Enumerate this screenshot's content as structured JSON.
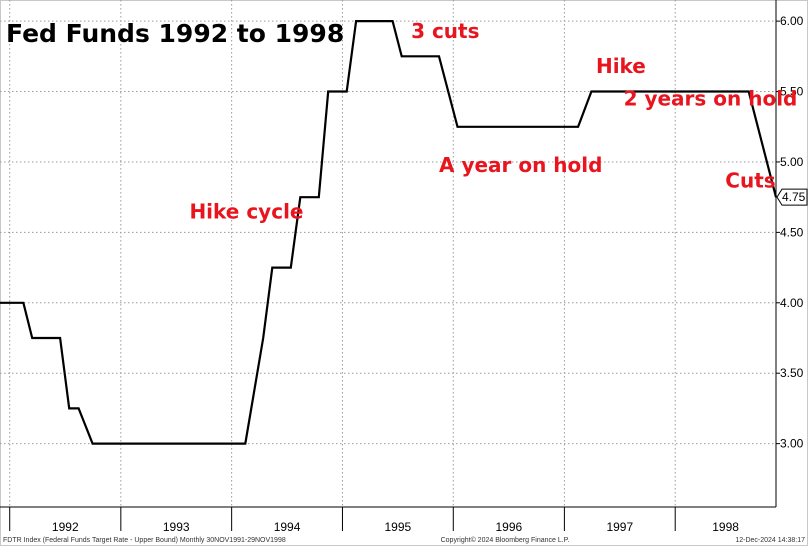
{
  "chart_data": {
    "type": "line",
    "title": "Fed Funds 1992 to 1998",
    "xlabel": "",
    "ylabel": "",
    "x_ticks": [
      "1992",
      "1993",
      "1994",
      "1995",
      "1996",
      "1997",
      "1998"
    ],
    "y_ticks": [
      "3.00",
      "3.50",
      "4.00",
      "4.50",
      "5.00",
      "5.50",
      "6.00"
    ],
    "ylim": [
      2.55,
      6.15
    ],
    "xlim": [
      "1991-11-30",
      "1998-11-29"
    ],
    "grid": true,
    "series": [
      {
        "color": "#000000",
        "points": [
          [
            "1991-11-30",
            4.0
          ],
          [
            "1992-02-15",
            4.0
          ],
          [
            "1992-03-15",
            3.75
          ],
          [
            "1992-06-15",
            3.75
          ],
          [
            "1992-07-15",
            3.25
          ],
          [
            "1992-08-15",
            3.25
          ],
          [
            "1992-09-30",
            3.0
          ],
          [
            "1994-02-15",
            3.0
          ],
          [
            "1994-04-15",
            3.75
          ],
          [
            "1994-05-15",
            4.25
          ],
          [
            "1994-07-15",
            4.25
          ],
          [
            "1994-08-15",
            4.75
          ],
          [
            "1994-10-15",
            4.75
          ],
          [
            "1994-11-15",
            5.5
          ],
          [
            "1995-01-15",
            5.5
          ],
          [
            "1995-02-15",
            6.0
          ],
          [
            "1995-06-15",
            6.0
          ],
          [
            "1995-07-15",
            5.75
          ],
          [
            "1995-11-15",
            5.75
          ],
          [
            "1996-01-15",
            5.25
          ],
          [
            "1997-02-15",
            5.25
          ],
          [
            "1997-03-31",
            5.5
          ],
          [
            "1998-08-31",
            5.5
          ],
          [
            "1998-11-29",
            4.75
          ]
        ]
      }
    ],
    "last_value_label": "4.75",
    "annotations": [
      {
        "text": "3 cuts",
        "x": "1995-08-15",
        "y": 5.88
      },
      {
        "text": "Hike",
        "x": "1997-04-15",
        "y": 5.63
      },
      {
        "text": "2 years on hold",
        "x": "1997-07-15",
        "y": 5.4
      },
      {
        "text": "A year on hold",
        "x": "1995-11-15",
        "y": 4.93
      },
      {
        "text": "Cuts",
        "x": "1998-06-15",
        "y": 4.82
      },
      {
        "text": "Hike cycle",
        "x": "1993-08-15",
        "y": 4.6
      }
    ]
  },
  "footer": {
    "left": "FDTR Index (Federal Funds Target Rate - Upper Bound)  Monthly 30NOV1991-29NOV1998",
    "center": "Copyright© 2024 Bloomberg Finance L.P.",
    "right": "12-Dec-2024 14:38:17"
  }
}
